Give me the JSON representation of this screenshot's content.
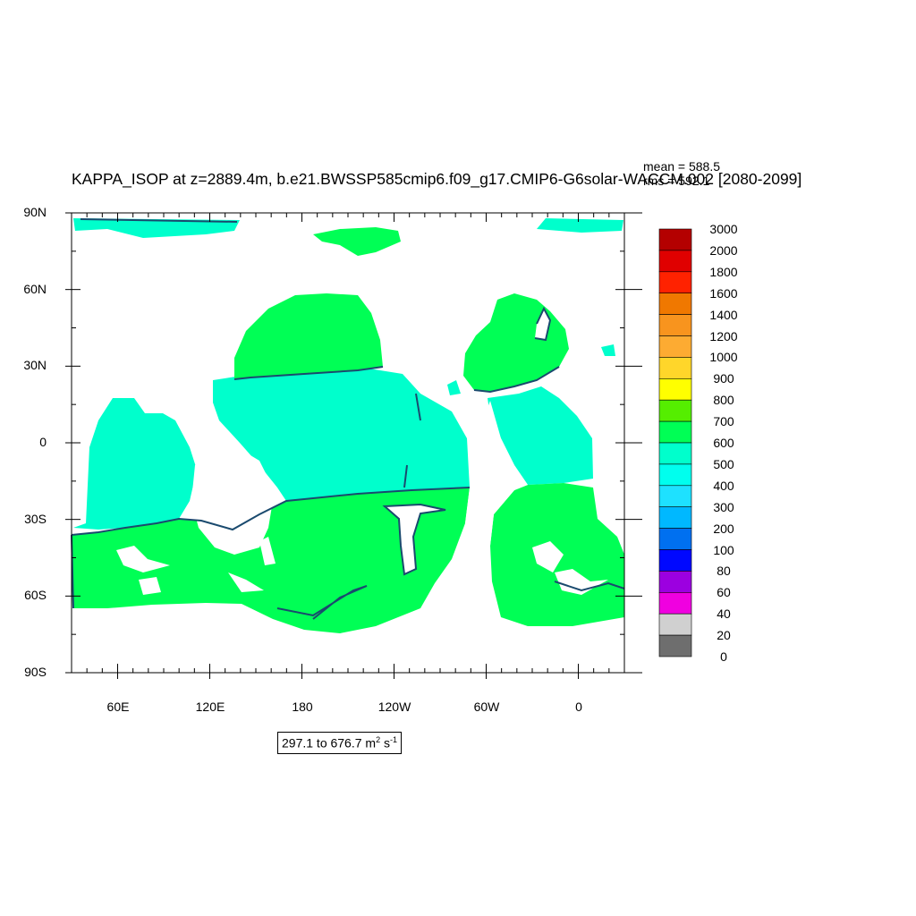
{
  "title": "KAPPA_ISOP at z=2889.4m, b.e21.BWSSP585cmip6.f09_g17.CMIP6-G6solar-WACCM.002 [2080-2099]",
  "stats": {
    "mean": "mean = 588.5",
    "rms": "rms = 592.1"
  },
  "y_labels": [
    "90N",
    "60N",
    "30N",
    "0",
    "30S",
    "60S",
    "90S"
  ],
  "x_labels": [
    "60E",
    "120E",
    "180",
    "120W",
    "60W",
    "0"
  ],
  "colorbar": {
    "labels": [
      "3000",
      "2000",
      "1800",
      "1600",
      "1400",
      "1200",
      "1000",
      "900",
      "800",
      "700",
      "600",
      "500",
      "400",
      "300",
      "200",
      "100",
      "80",
      "60",
      "40",
      "20",
      "0"
    ],
    "colors": [
      "#b40000",
      "#e00000",
      "#ff2200",
      "#f07800",
      "#f8941e",
      "#fdab32",
      "#ffd62a",
      "#ffff00",
      "#55ee00",
      "#00ff55",
      "#00ffcc",
      "#00ffee",
      "#1ee1ff",
      "#00b8ff",
      "#0070f0",
      "#0008ff",
      "#9c00e0",
      "#f000e0",
      "#d0d0d0",
      "#6e6e6e"
    ]
  },
  "range_text": {
    "prefix": "297.1 to 676.7 m",
    "sup1": "2",
    "mid": " s",
    "sup2": "-1"
  },
  "map_colors": {
    "band_600_700": "#00ff55",
    "band_500_600": "#00ffcc",
    "band_400_500": "#00ffee",
    "contour": "#1a4a6e"
  },
  "chart_data": {
    "type": "heatmap",
    "title": "KAPPA_ISOP at z=2889.4m, b.e21.BWSSP585cmip6.f09_g17.CMIP6-G6solar-WACCM.002 [2080-2099]",
    "variable": "KAPPA_ISOP",
    "units": "m2 s-1",
    "depth": "z=2889.4m",
    "period": "2080-2099",
    "mean": 588.5,
    "rms": 592.1,
    "min": 297.1,
    "max": 676.7,
    "xlim": [
      "30E",
      "30E"
    ],
    "ylim": [
      -90,
      90
    ],
    "contour_levels": [
      0,
      20,
      40,
      60,
      80,
      100,
      200,
      300,
      400,
      500,
      600,
      700,
      800,
      900,
      1000,
      1200,
      1400,
      1600,
      1800,
      2000,
      3000
    ]
  }
}
